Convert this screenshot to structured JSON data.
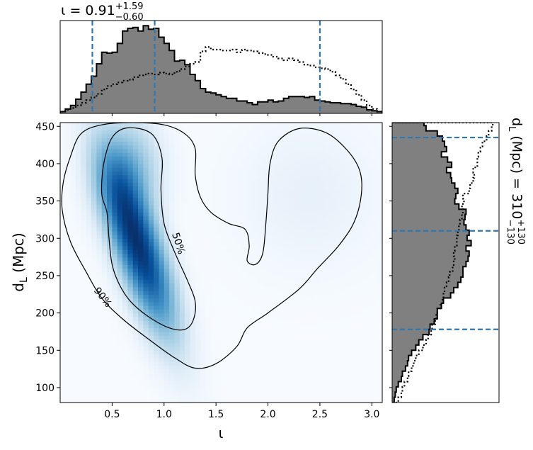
{
  "chart_data": [
    {
      "id": "joint",
      "type": "heatmap",
      "x_range": [
        0.0,
        3.1
      ],
      "y_range": [
        80,
        455
      ],
      "xticks": [
        0.5,
        1.0,
        1.5,
        2.0,
        2.5,
        3.0
      ],
      "xtick_labels": [
        "0.5",
        "1.0",
        "1.5",
        "2.0",
        "2.5",
        "3.0"
      ],
      "yticks": [
        100,
        150,
        200,
        250,
        300,
        350,
        400,
        450
      ],
      "ytick_labels": [
        "100",
        "150",
        "200",
        "250",
        "300",
        "350",
        "400",
        "450"
      ],
      "xlabel": "ι",
      "ylabel_main": "d",
      "ylabel_sub": "L",
      "ylabel_unit": " (Mpc)",
      "colormap": [
        "#f7fbff",
        "#deebf7",
        "#9ecae1",
        "#4292c6",
        "#08519c",
        "#08306b"
      ],
      "density_components": [
        {
          "mx": 0.75,
          "my": 290,
          "sx": 0.23,
          "sy": 75,
          "rho": -0.75,
          "w": 1.0
        },
        {
          "mx": 0.65,
          "my": 390,
          "sx": 0.2,
          "sy": 45,
          "rho": 0.0,
          "w": 0.35
        },
        {
          "mx": 2.4,
          "my": 360,
          "sx": 0.45,
          "sy": 65,
          "rho": 0.0,
          "w": 0.05
        }
      ],
      "contours": [
        {
          "level": "50%",
          "points": [
            [
              0.45,
              335
            ],
            [
              0.4,
              360
            ],
            [
              0.42,
              400
            ],
            [
              0.5,
              435
            ],
            [
              0.65,
              448
            ],
            [
              0.88,
              440
            ],
            [
              0.98,
              408
            ],
            [
              0.97,
              365
            ],
            [
              1.0,
              320
            ],
            [
              1.1,
              282
            ],
            [
              1.22,
              245
            ],
            [
              1.3,
              215
            ],
            [
              1.28,
              190
            ],
            [
              1.2,
              178
            ],
            [
              1.05,
              180
            ],
            [
              0.85,
              195
            ],
            [
              0.68,
              215
            ],
            [
              0.57,
              238
            ],
            [
              0.5,
              265
            ],
            [
              0.47,
              300
            ]
          ]
        },
        {
          "level": "90%",
          "points": [
            [
              0.02,
              338
            ],
            [
              0.03,
              375
            ],
            [
              0.1,
              410
            ],
            [
              0.2,
              440
            ],
            [
              0.4,
              452
            ],
            [
              0.7,
              455
            ],
            [
              1.0,
              452
            ],
            [
              1.2,
              440
            ],
            [
              1.3,
              420
            ],
            [
              1.3,
              385
            ],
            [
              1.35,
              355
            ],
            [
              1.45,
              335
            ],
            [
              1.62,
              320
            ],
            [
              1.78,
              312
            ],
            [
              1.82,
              290
            ],
            [
              1.8,
              270
            ],
            [
              1.88,
              265
            ],
            [
              1.95,
              280
            ],
            [
              1.98,
              320
            ],
            [
              2.0,
              360
            ],
            [
              2.02,
              400
            ],
            [
              2.1,
              430
            ],
            [
              2.3,
              447
            ],
            [
              2.55,
              442
            ],
            [
              2.75,
              420
            ],
            [
              2.88,
              392
            ],
            [
              2.9,
              360
            ],
            [
              2.83,
              322
            ],
            [
              2.68,
              290
            ],
            [
              2.48,
              260
            ],
            [
              2.3,
              232
            ],
            [
              2.0,
              200
            ],
            [
              1.8,
              180
            ],
            [
              1.7,
              155
            ],
            [
              1.5,
              132
            ],
            [
              1.3,
              126
            ],
            [
              1.1,
              140
            ],
            [
              0.85,
              165
            ],
            [
              0.6,
              192
            ],
            [
              0.4,
              220
            ],
            [
              0.25,
              255
            ],
            [
              0.1,
              295
            ]
          ]
        }
      ]
    },
    {
      "id": "marginal-x",
      "type": "bar",
      "title_symbol": "ι = 0.91",
      "title_sup": "+1.59",
      "title_sub": "−0.60",
      "x_range": [
        0.0,
        3.1
      ],
      "quantiles": [
        0.31,
        0.91,
        2.5
      ],
      "step_edges": [
        0.0,
        0.05,
        0.1,
        0.15,
        0.2,
        0.25,
        0.3,
        0.35,
        0.4,
        0.45,
        0.5,
        0.55,
        0.6,
        0.65,
        0.7,
        0.75,
        0.8,
        0.85,
        0.9,
        0.95,
        1.0,
        1.05,
        1.1,
        1.15,
        1.2,
        1.25,
        1.3,
        1.35,
        1.4,
        1.45,
        1.5,
        1.55,
        1.6,
        1.65,
        1.7,
        1.75,
        1.8,
        1.85,
        1.9,
        1.95,
        2.0,
        2.05,
        2.1,
        2.15,
        2.2,
        2.25,
        2.3,
        2.35,
        2.4,
        2.45,
        2.5,
        2.55,
        2.6,
        2.65,
        2.7,
        2.75,
        2.8,
        2.85,
        2.9,
        2.95,
        3.0,
        3.05,
        3.1
      ],
      "series": [
        {
          "style": "filled",
          "values": [
            0.02,
            0.05,
            0.09,
            0.16,
            0.24,
            0.33,
            0.42,
            0.56,
            0.69,
            0.68,
            0.69,
            0.79,
            0.93,
            0.96,
            0.97,
            0.93,
            0.99,
            0.95,
            0.96,
            0.86,
            0.79,
            0.71,
            0.59,
            0.6,
            0.55,
            0.44,
            0.37,
            0.28,
            0.24,
            0.23,
            0.21,
            0.19,
            0.17,
            0.17,
            0.14,
            0.14,
            0.12,
            0.1,
            0.13,
            0.13,
            0.15,
            0.13,
            0.14,
            0.17,
            0.19,
            0.19,
            0.19,
            0.18,
            0.19,
            0.15,
            0.14,
            0.13,
            0.12,
            0.12,
            0.11,
            0.11,
            0.1,
            0.08,
            0.07,
            0.04,
            0.03,
            0.02
          ]
        },
        {
          "style": "dotted",
          "values": [
            0.02,
            0.04,
            0.06,
            0.09,
            0.12,
            0.15,
            0.18,
            0.22,
            0.27,
            0.31,
            0.33,
            0.35,
            0.37,
            0.38,
            0.41,
            0.43,
            0.44,
            0.45,
            0.44,
            0.46,
            0.45,
            0.44,
            0.47,
            0.5,
            0.53,
            0.56,
            0.58,
            0.7,
            0.75,
            0.72,
            0.72,
            0.71,
            0.71,
            0.72,
            0.69,
            0.72,
            0.71,
            0.7,
            0.68,
            0.67,
            0.66,
            0.64,
            0.62,
            0.6,
            0.62,
            0.6,
            0.58,
            0.55,
            0.54,
            0.52,
            0.51,
            0.5,
            0.47,
            0.43,
            0.39,
            0.33,
            0.27,
            0.21,
            0.15,
            0.09,
            0.05,
            0.02
          ]
        }
      ]
    },
    {
      "id": "marginal-y",
      "type": "bar",
      "title_symbol": "d",
      "title_sub_symbol": "L",
      "title_rest": " (Mpc) = 310",
      "title_sup": "+130",
      "title_sub": "−130",
      "y_range": [
        80,
        455
      ],
      "quantiles": [
        178,
        310,
        435
      ],
      "step_edges": [
        80,
        87,
        94,
        101,
        108,
        115,
        122,
        129,
        136,
        143,
        150,
        157,
        164,
        171,
        178,
        185,
        192,
        199,
        206,
        213,
        220,
        227,
        234,
        241,
        248,
        255,
        262,
        269,
        276,
        283,
        290,
        297,
        304,
        311,
        318,
        325,
        332,
        339,
        346,
        353,
        360,
        367,
        374,
        381,
        388,
        395,
        402,
        409,
        416,
        423,
        430,
        437,
        444,
        451,
        455
      ],
      "series": [
        {
          "style": "filled",
          "values": [
            0.02,
            0.03,
            0.04,
            0.06,
            0.09,
            0.1,
            0.13,
            0.15,
            0.16,
            0.19,
            0.23,
            0.26,
            0.3,
            0.36,
            0.37,
            0.41,
            0.44,
            0.44,
            0.48,
            0.5,
            0.57,
            0.6,
            0.64,
            0.67,
            0.69,
            0.69,
            0.72,
            0.74,
            0.75,
            0.72,
            0.77,
            0.73,
            0.75,
            0.72,
            0.7,
            0.71,
            0.72,
            0.65,
            0.61,
            0.62,
            0.64,
            0.61,
            0.58,
            0.57,
            0.53,
            0.58,
            0.54,
            0.48,
            0.53,
            0.51,
            0.49,
            0.44,
            0.33,
            0.31
          ]
        },
        {
          "style": "dotted",
          "values": [
            0.06,
            0.09,
            0.1,
            0.12,
            0.15,
            0.16,
            0.19,
            0.21,
            0.23,
            0.26,
            0.3,
            0.33,
            0.35,
            0.38,
            0.39,
            0.42,
            0.43,
            0.44,
            0.47,
            0.49,
            0.5,
            0.51,
            0.53,
            0.55,
            0.56,
            0.59,
            0.6,
            0.61,
            0.6,
            0.61,
            0.63,
            0.63,
            0.64,
            0.65,
            0.66,
            0.68,
            0.69,
            0.68,
            0.7,
            0.69,
            0.75,
            0.76,
            0.79,
            0.8,
            0.79,
            0.83,
            0.83,
            0.84,
            0.86,
            0.88,
            0.92,
            0.94,
            0.97,
            0.98
          ]
        }
      ]
    }
  ]
}
